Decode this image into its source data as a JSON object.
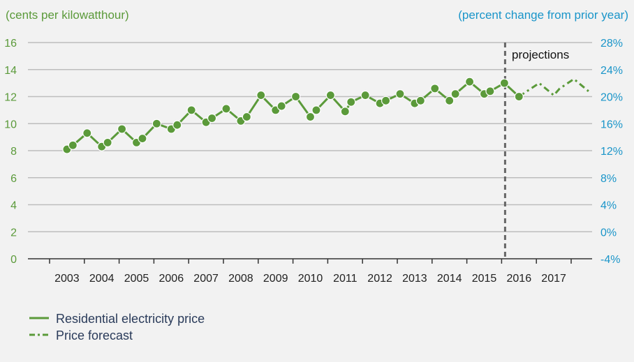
{
  "chart_data": {
    "type": "line",
    "title": "",
    "ylabel_left": "(cents per kilowatthour)",
    "ylabel_right": "(percent change from prior year)",
    "y_left_ticks": [
      "0",
      "2",
      "4",
      "6",
      "8",
      "10",
      "12",
      "14",
      "16"
    ],
    "y_right_ticks": [
      "-4%",
      "0%",
      "4%",
      "8%",
      "12%",
      "16%",
      "20%",
      "24%",
      "28%"
    ],
    "ylim_left": [
      0,
      16
    ],
    "ylim_right": [
      -4,
      28
    ],
    "x_tick_labels": [
      "2003",
      "2004",
      "2005",
      "2006",
      "2007",
      "2008",
      "2009",
      "2010",
      "2011",
      "2012",
      "2013",
      "2014",
      "2015",
      "2016",
      "2017"
    ],
    "xlim": [
      2002.5,
      2017.5
    ],
    "grid": true,
    "annotation": "projections",
    "projection_start": 2015.6,
    "series": [
      {
        "name": "Residential electricity price",
        "style": "solid",
        "color": "#5b9a3a",
        "x": [
          2003.0,
          2003.17,
          2003.58,
          2004.0,
          2004.17,
          2004.58,
          2005.0,
          2005.17,
          2005.58,
          2006.0,
          2006.17,
          2006.58,
          2007.0,
          2007.17,
          2007.58,
          2008.0,
          2008.17,
          2008.58,
          2009.0,
          2009.17,
          2009.58,
          2010.0,
          2010.17,
          2010.58,
          2011.0,
          2011.17,
          2011.58,
          2012.0,
          2012.17,
          2012.58,
          2013.0,
          2013.17,
          2013.58,
          2014.0,
          2014.17,
          2014.58,
          2015.0,
          2015.17,
          2015.58,
          2016.0
        ],
        "y": [
          8.1,
          8.4,
          9.3,
          8.3,
          8.6,
          9.6,
          8.6,
          8.9,
          10.0,
          9.6,
          9.9,
          11.0,
          10.1,
          10.4,
          11.1,
          10.2,
          10.5,
          12.1,
          11.0,
          11.3,
          12.0,
          10.5,
          11.0,
          12.1,
          10.9,
          11.6,
          12.1,
          11.5,
          11.7,
          12.2,
          11.5,
          11.7,
          12.6,
          11.7,
          12.2,
          13.1,
          12.2,
          12.4,
          13.0,
          12.0
        ]
      },
      {
        "name": "Price forecast",
        "style": "dashed",
        "color": "#5b9a3a",
        "x": [
          2016.0,
          2016.17,
          2016.58,
          2017.0,
          2017.17,
          2017.58,
          2018.0
        ],
        "y": [
          12.0,
          12.3,
          13.0,
          12.1,
          12.6,
          13.3,
          12.4
        ]
      }
    ],
    "legend_placement": "bottom-left"
  }
}
